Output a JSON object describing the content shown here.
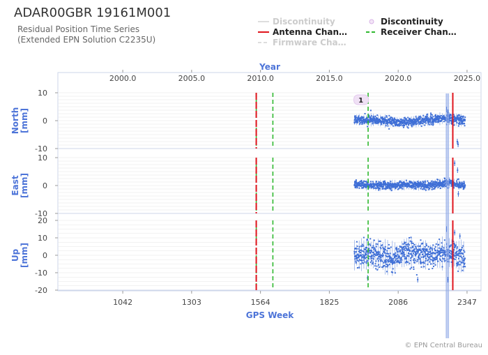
{
  "chart": {
    "title": "ADAR00GBR 19161M001",
    "subtitle_line1": "Residual Position Time Series",
    "subtitle_line2": "(Extended EPN Solution C2235U)",
    "credit": "© EPN Central Bureau",
    "top_axis_title": "Year",
    "bottom_axis_title": "GPS Week",
    "colors": {
      "points": "#3f6fd6",
      "antenna": "#e0141c",
      "receiver": "#2eb82e",
      "axis_title": "#4d74d8",
      "frame": "#cdd6ea",
      "grid": "#e6e6e6"
    }
  },
  "legend": [
    {
      "label": "Discontinuity",
      "kind": "line",
      "dimmed": true
    },
    {
      "label": "Discontinuity",
      "kind": "marker",
      "dimmed": false
    },
    {
      "label": "Antenna Chan…",
      "kind": "antenna",
      "dimmed": false
    },
    {
      "label": "Receiver Chan…",
      "kind": "receiver",
      "dimmed": false
    },
    {
      "label": "Firmware Cha…",
      "kind": "firmware",
      "dimmed": true
    }
  ],
  "chart_data": {
    "type": "scatter",
    "x_axis": {
      "label": "GPS Week",
      "range": [
        796,
        2400
      ],
      "ticks": [
        1042,
        1303,
        1564,
        1825,
        2086,
        2347
      ]
    },
    "top_axis": {
      "label": "Year",
      "ticks": [
        "2000.0",
        "2005.0",
        "2010.0",
        "2015.0",
        "2020.0",
        "2025.0"
      ],
      "tick_gps_weeks": [
        1042,
        1303,
        1564,
        1825,
        2086,
        2347
      ]
    },
    "panels": [
      {
        "name": "North",
        "ylabel_lines": [
          "North",
          "[mm]"
        ],
        "ylim": [
          -10,
          10
        ],
        "yticks": [
          -10,
          0,
          10
        ],
        "data_start_week": 1920,
        "data_end_week": 2340,
        "noise_mm": 0.8,
        "trend": [
          {
            "x": 1920,
            "y": 0.3
          },
          {
            "x": 1990,
            "y": 0.3
          },
          {
            "x": 2060,
            "y": -0.4
          },
          {
            "x": 2120,
            "y": -0.6
          },
          {
            "x": 2180,
            "y": 0.1
          },
          {
            "x": 2230,
            "y": 0.6
          },
          {
            "x": 2270,
            "y": 0.9
          },
          {
            "x": 2300,
            "y": 0.4
          },
          {
            "x": 2340,
            "y": 0.0
          }
        ]
      },
      {
        "name": "East",
        "ylabel_lines": [
          "East",
          "[mm]"
        ],
        "ylim": [
          -10,
          10
        ],
        "yticks": [
          -10,
          0,
          10
        ],
        "data_start_week": 1920,
        "data_end_week": 2340,
        "noise_mm": 0.7,
        "trend": [
          {
            "x": 1920,
            "y": 0.3
          },
          {
            "x": 2000,
            "y": 0.0
          },
          {
            "x": 2100,
            "y": 0.2
          },
          {
            "x": 2200,
            "y": 0.0
          },
          {
            "x": 2250,
            "y": 0.6
          },
          {
            "x": 2280,
            "y": 1.0
          },
          {
            "x": 2340,
            "y": -0.3
          }
        ]
      },
      {
        "name": "Up",
        "ylabel_lines": [
          "Up",
          "[mm]"
        ],
        "ylim": [
          -20,
          20
        ],
        "yticks": [
          -20,
          -10,
          0,
          10,
          20
        ],
        "data_start_week": 1920,
        "data_end_week": 2340,
        "noise_mm": 3.5,
        "trend": [
          {
            "x": 1920,
            "y": 0.0
          },
          {
            "x": 2000,
            "y": 1.0
          },
          {
            "x": 2060,
            "y": -2.0
          },
          {
            "x": 2120,
            "y": 2.0
          },
          {
            "x": 2200,
            "y": 0.0
          },
          {
            "x": 2280,
            "y": 1.5
          },
          {
            "x": 2340,
            "y": -1.0
          }
        ]
      }
    ],
    "antenna_changes": [
      1548,
      2293
    ],
    "receiver_changes": [
      1548,
      1611,
      1972
    ],
    "discontinuities": [
      {
        "x": 1947,
        "label": "1"
      }
    ],
    "outliers": [
      {
        "panel": 0,
        "x": 2270,
        "y": 4.0
      },
      {
        "panel": 0,
        "x": 2275,
        "y": 3.0
      },
      {
        "panel": 0,
        "x": 2310,
        "y": -7.5
      },
      {
        "panel": 0,
        "x": 2313,
        "y": -8.5
      },
      {
        "panel": 1,
        "x": 2300,
        "y": 8.0
      },
      {
        "panel": 1,
        "x": 2311,
        "y": 5.5
      },
      {
        "panel": 1,
        "x": 2314,
        "y": -3.0
      },
      {
        "panel": 2,
        "x": 2270,
        "y": 15.0
      },
      {
        "panel": 2,
        "x": 2275,
        "y": -14.0
      },
      {
        "panel": 2,
        "x": 2300,
        "y": 13.0
      },
      {
        "panel": 2,
        "x": 2320,
        "y": 11.0
      },
      {
        "panel": 2,
        "x": 2160,
        "y": -14.0
      },
      {
        "panel": 2,
        "x": 1970,
        "y": -13.0
      }
    ]
  }
}
